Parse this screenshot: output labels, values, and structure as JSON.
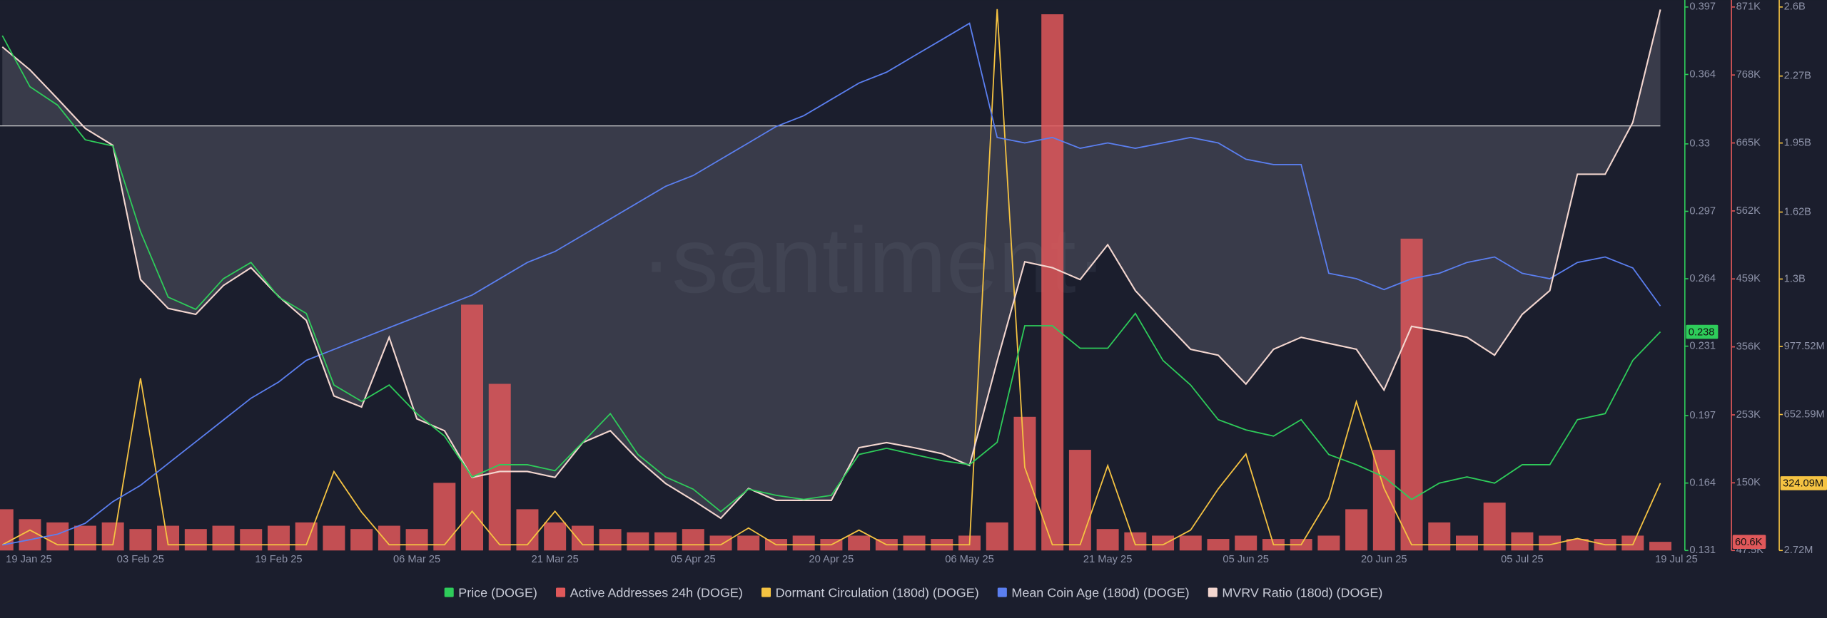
{
  "chart_data": {
    "type": "line",
    "watermark": "·santiment·",
    "categories": [
      "19 Jan 25",
      null,
      null,
      null,
      null,
      "03 Feb 25",
      null,
      null,
      null,
      null,
      "19 Feb 25",
      null,
      null,
      null,
      null,
      "06 Mar 25",
      null,
      null,
      null,
      null,
      "21 Mar 25",
      null,
      null,
      null,
      null,
      "05 Apr 25",
      null,
      null,
      null,
      null,
      "20 Apr 25",
      null,
      null,
      null,
      null,
      "06 May 25",
      null,
      null,
      null,
      null,
      "21 May 25",
      null,
      null,
      null,
      null,
      "05 Jun 25",
      null,
      null,
      null,
      null,
      "20 Jun 25",
      null,
      null,
      null,
      null,
      "05 Jul 25",
      null,
      null,
      null,
      null,
      "19 Jul 25"
    ],
    "ylim": [
      0.131,
      0.397
    ],
    "yticks": [
      0.131,
      0.164,
      0.197,
      0.231,
      0.264,
      0.297,
      0.33,
      0.364,
      0.397
    ],
    "y2lim": [
      47500,
      871000
    ],
    "y2ticks": [
      {
        "value": 47500,
        "label": "47.5K"
      },
      {
        "value": 150000,
        "label": "150K"
      },
      {
        "value": 253000,
        "label": "253K"
      },
      {
        "value": 356000,
        "label": "356K"
      },
      {
        "value": 459000,
        "label": "459K"
      },
      {
        "value": 562000,
        "label": "562K"
      },
      {
        "value": 665000,
        "label": "665K"
      },
      {
        "value": 768000,
        "label": "768K"
      },
      {
        "value": 871000,
        "label": "871K"
      }
    ],
    "y3lim": [
      2720000,
      2600000000
    ],
    "y3ticks": [
      {
        "value": 2720000,
        "label": "2.72M"
      },
      {
        "value": 652590000,
        "label": "652.59M"
      },
      {
        "value": 977520000,
        "label": "977.52M"
      },
      {
        "value": 1300000000,
        "label": "1.3B"
      },
      {
        "value": 1620000000,
        "label": "1.62B"
      },
      {
        "value": 1950000000,
        "label": "1.95B"
      },
      {
        "value": 2270000000,
        "label": "2.27B"
      },
      {
        "value": 2600000000,
        "label": "2.6B"
      }
    ],
    "series": [
      {
        "name": "Price (DOGE)",
        "color": "#2ecc5a",
        "axis": "y",
        "current_label": "0.238",
        "values": [
          0.383,
          0.358,
          0.349,
          0.332,
          0.329,
          0.287,
          0.255,
          0.249,
          0.264,
          0.272,
          0.255,
          0.247,
          0.212,
          0.204,
          0.212,
          0.198,
          0.187,
          0.167,
          0.173,
          0.173,
          0.17,
          0.184,
          0.198,
          0.178,
          0.167,
          0.161,
          0.15,
          0.161,
          0.158,
          0.156,
          0.158,
          0.178,
          0.181,
          0.178,
          0.175,
          0.173,
          0.184,
          0.241,
          0.241,
          0.23,
          0.23,
          0.247,
          0.224,
          0.212,
          0.195,
          0.19,
          0.187,
          0.195,
          0.178,
          0.173,
          0.167,
          0.156,
          0.164,
          0.167,
          0.164,
          0.173,
          0.173,
          0.195,
          0.198,
          0.224,
          0.238
        ]
      },
      {
        "name": "Active Addresses 24h (DOGE)",
        "color": "#e0585a",
        "axis": "y2",
        "current_label": "60.6K",
        "values": [
          110000,
          95000,
          90000,
          85000,
          90000,
          80000,
          85000,
          80000,
          85000,
          80000,
          85000,
          90000,
          85000,
          80000,
          85000,
          80000,
          150000,
          420000,
          300000,
          110000,
          90000,
          85000,
          80000,
          75000,
          75000,
          80000,
          70000,
          70000,
          65000,
          70000,
          65000,
          70000,
          65000,
          70000,
          65000,
          70000,
          90000,
          250000,
          860000,
          200000,
          80000,
          75000,
          70000,
          70000,
          65000,
          70000,
          65000,
          65000,
          70000,
          110000,
          200000,
          520000,
          90000,
          70000,
          120000,
          75000,
          70000,
          65000,
          65000,
          70000,
          60600
        ]
      },
      {
        "name": "Dormant Circulation (180d) (DOGE)",
        "color": "#f5c342",
        "axis": "y3",
        "current_label": "324.09M",
        "values": [
          30000000,
          100000000,
          30000000,
          30000000,
          30000000,
          826000000,
          30000000,
          30000000,
          30000000,
          30000000,
          30000000,
          30000000,
          380000000,
          186000000,
          30000000,
          30000000,
          30000000,
          190000000,
          30000000,
          30000000,
          190000000,
          30000000,
          30000000,
          30000000,
          30000000,
          30000000,
          30000000,
          110000000,
          30000000,
          30000000,
          30000000,
          100000000,
          30000000,
          30000000,
          30000000,
          30000000,
          2590000000,
          400000000,
          30000000,
          30000000,
          408000000,
          30000000,
          30000000,
          100000000,
          297000000,
          464000000,
          30000000,
          30000000,
          250000000,
          714000000,
          300000000,
          30000000,
          30000000,
          30000000,
          30000000,
          30000000,
          30000000,
          60000000,
          30000000,
          30000000,
          324090000
        ]
      },
      {
        "name": "Mean Coin Age (180d) (DOGE)",
        "color": "#5b7ff0",
        "ylim": [
          0,
          100
        ],
        "values": [
          1,
          2,
          3,
          5,
          9,
          12,
          16,
          20,
          24,
          28,
          31,
          35,
          37,
          39,
          41,
          43,
          45,
          47,
          50,
          53,
          55,
          58,
          61,
          64,
          67,
          69,
          72,
          75,
          78,
          80,
          83,
          86,
          88,
          91,
          94,
          97,
          76,
          75,
          76,
          74,
          75,
          74,
          75,
          76,
          75,
          72,
          71,
          71,
          51,
          50,
          48,
          50,
          51,
          53,
          54,
          51,
          50,
          53,
          54,
          52,
          45
        ]
      },
      {
        "name": "MVRV Ratio (180d) (DOGE)",
        "color": "#f3d6cf",
        "ylim": [
          0.5,
          1.14
        ],
        "baseline": 1,
        "values": [
          1.093,
          1.066,
          1.032,
          0.997,
          0.977,
          0.819,
          0.785,
          0.778,
          0.812,
          0.833,
          0.799,
          0.771,
          0.682,
          0.669,
          0.751,
          0.655,
          0.641,
          0.586,
          0.593,
          0.593,
          0.586,
          0.627,
          0.641,
          0.607,
          0.579,
          0.559,
          0.538,
          0.573,
          0.559,
          0.559,
          0.559,
          0.621,
          0.627,
          0.621,
          0.614,
          0.6,
          0.723,
          0.84,
          0.833,
          0.819,
          0.86,
          0.806,
          0.771,
          0.737,
          0.73,
          0.696,
          0.737,
          0.751,
          0.744,
          0.737,
          0.689,
          0.764,
          0.758,
          0.751,
          0.73,
          0.778,
          0.806,
          0.943,
          0.943,
          1.004,
          1.137
        ]
      }
    ]
  }
}
